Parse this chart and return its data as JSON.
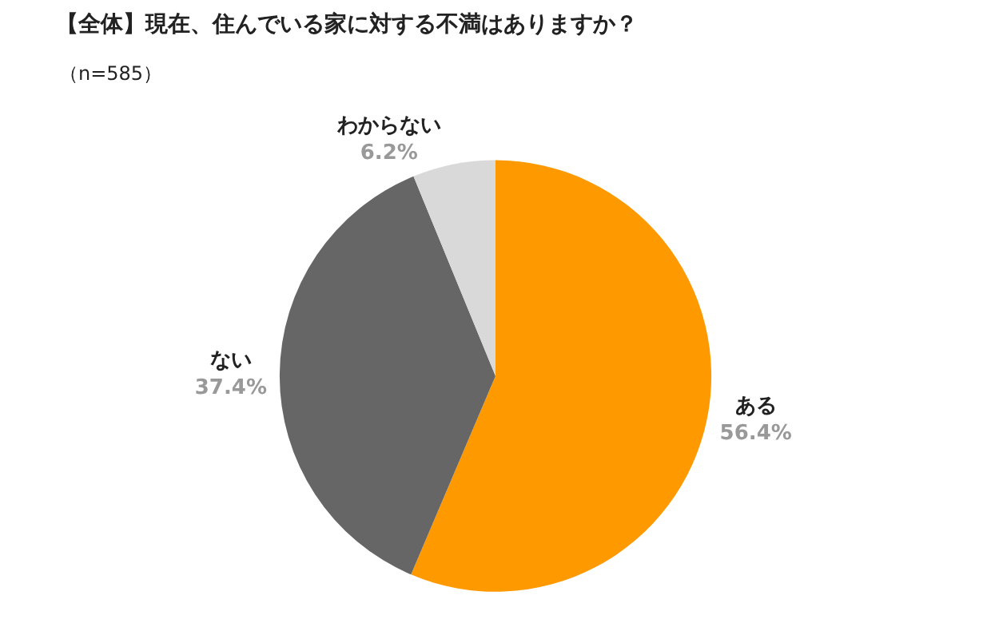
{
  "chart_data": {
    "type": "pie",
    "title": "【全体】現在、住んでいる家に対する不満はありますか？",
    "subtitle": "（n=585）",
    "categories": [
      "ある",
      "ない",
      "わからない"
    ],
    "values": [
      56.4,
      37.4,
      6.2
    ],
    "value_labels": [
      "56.4%",
      "37.4%",
      "6.2%"
    ],
    "colors": [
      "#ff9900",
      "#666666",
      "#d9d9d9"
    ],
    "legend": false
  }
}
